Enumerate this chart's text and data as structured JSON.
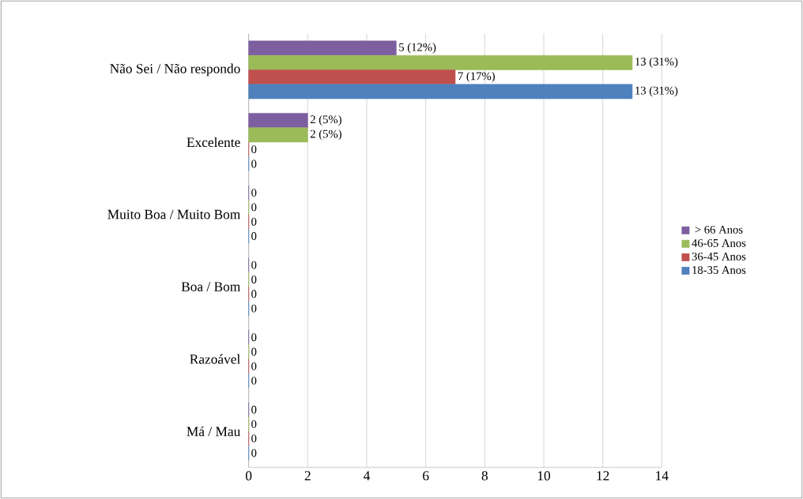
{
  "chart_data": {
    "type": "bar",
    "orientation": "horizontal",
    "categories": [
      "Não Sei / Não respondo",
      "Excelente",
      "Muito Boa / Muito Bom",
      "Boa / Bom",
      "Razoável",
      "Má / Mau"
    ],
    "series": [
      {
        "name": "> 66 Anos",
        "color": "#7d5fa0",
        "values": [
          5,
          2,
          0,
          0,
          0,
          0
        ],
        "value_labels": [
          "5 (12%)",
          "2 (5%)",
          "0",
          "0",
          "0",
          "0"
        ]
      },
      {
        "name": "46-65 Anos",
        "color": "#9bbb59",
        "values": [
          13,
          2,
          0,
          0,
          0,
          0
        ],
        "value_labels": [
          "13 (31%)",
          "2 (5%)",
          "0",
          "0",
          "0",
          "0"
        ]
      },
      {
        "name": "36-45 Anos",
        "color": "#c0504d",
        "values": [
          7,
          0,
          0,
          0,
          0,
          0
        ],
        "value_labels": [
          "7 (17%)",
          "0",
          "0",
          "0",
          "0",
          "0"
        ]
      },
      {
        "name": "18-35 Anos",
        "color": "#4f81bd",
        "values": [
          13,
          0,
          0,
          0,
          0,
          0
        ],
        "value_labels": [
          "13 (31%)",
          "0",
          "0",
          "0",
          "0",
          "0"
        ]
      }
    ],
    "xlim": [
      0,
      14
    ],
    "xticks": [
      0,
      2,
      4,
      6,
      8,
      10,
      12,
      14
    ],
    "grid": "x",
    "legend": "right"
  }
}
